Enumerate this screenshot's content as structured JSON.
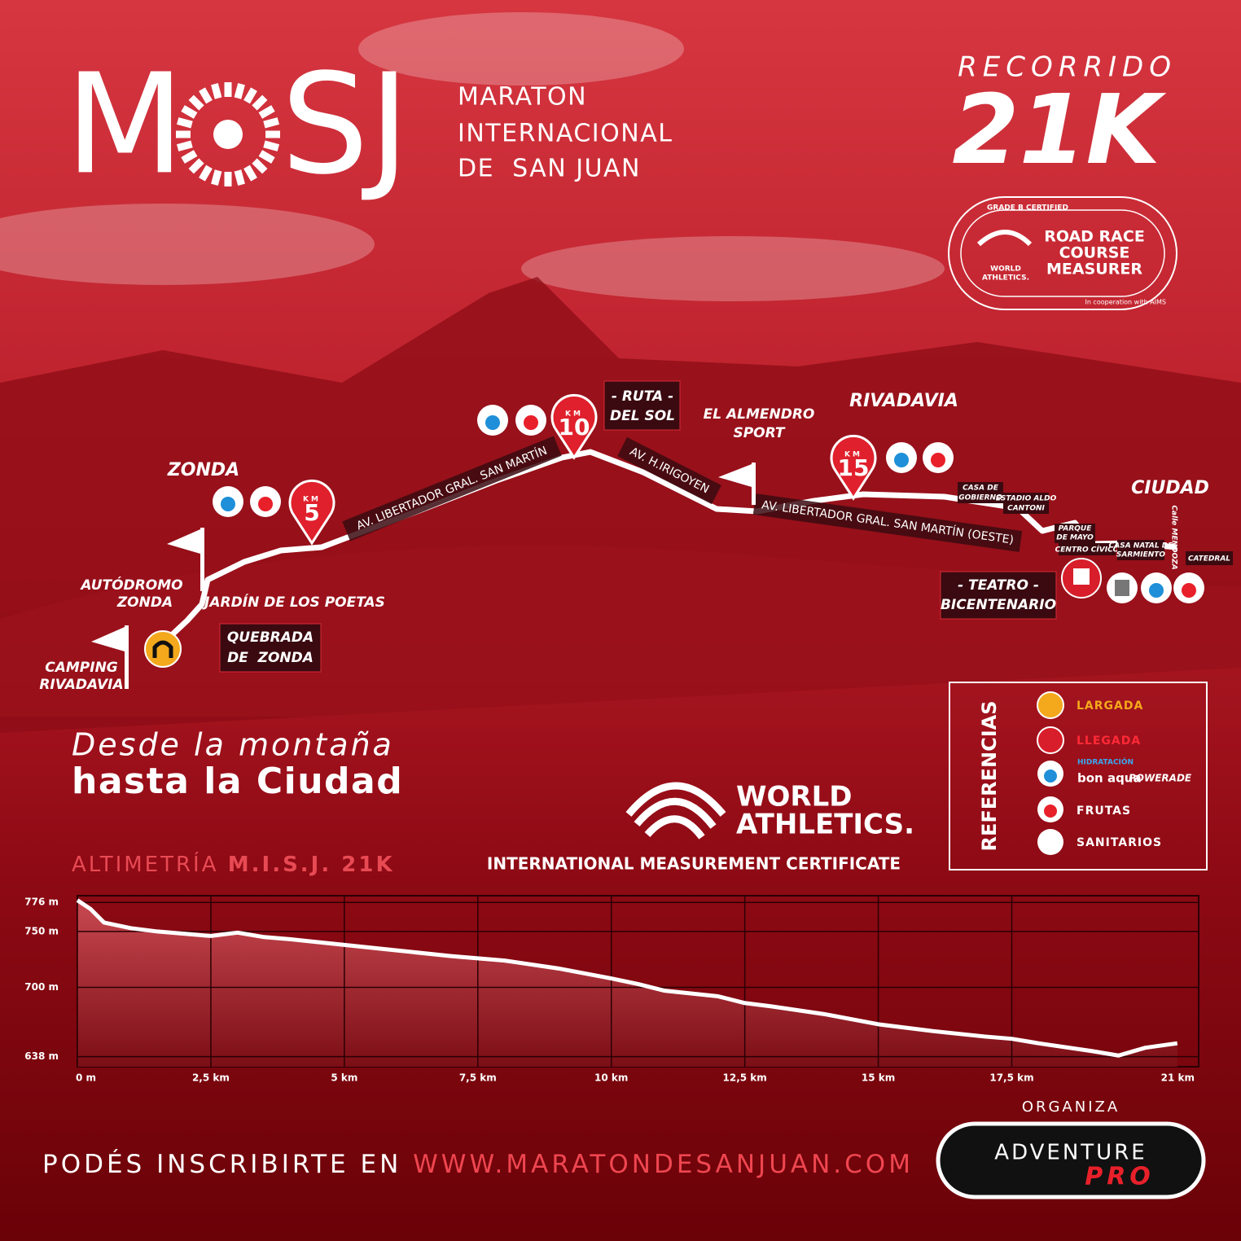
{
  "header": {
    "logo": [
      "M",
      "SJ"
    ],
    "event_name": [
      "MARATON",
      "INTERNACIONAL",
      "DE  SAN JUAN"
    ],
    "route_label": "RECORRIDO",
    "distance": "21K"
  },
  "badge": {
    "arc_top": "GRADE B CERTIFIED",
    "lines": [
      "ROAD RACE",
      "COURSE",
      "MEASURER"
    ],
    "org": [
      "WORLD",
      "ATHLETICS."
    ],
    "footer": "In cooperation with AIMS"
  },
  "map": {
    "places": [
      [
        "ZONDA"
      ],
      [
        "AUTÓDROMO",
        "ZONDA"
      ],
      [
        "CAMPING",
        "RIVADAVIA"
      ],
      [
        "JARDÍN DE LOS POETAS"
      ],
      [
        "QUEBRADA",
        "DE  ZONDA"
      ],
      [
        "- RUTA -",
        "DEL SOL"
      ],
      [
        "EL ALMENDRO",
        "SPORT"
      ],
      [
        "RIVADAVIA"
      ],
      [
        "CASA DE",
        "GOBIERNO"
      ],
      [
        "ESTADIO ALDO",
        "CANTONI"
      ],
      [
        "PARQUE",
        "DE MAYO"
      ],
      [
        "CENTRO CÍVICO"
      ],
      [
        "CASA NATAL DE",
        "SARMIENTO"
      ],
      [
        "Calle MENDOZA"
      ],
      [
        "CATEDRAL"
      ],
      [
        "CIUDAD"
      ],
      [
        "- TEATRO -",
        "BICENTENARIO"
      ]
    ],
    "streets": [
      "AV. LIBERTADOR GRAL. SAN MARTÍN",
      "AV. H.IRIGOYEN",
      "AV. LIBERTADOR GRAL. SAN MARTÍN (OESTE)"
    ],
    "km_label": "KM",
    "km_markers": [
      "5",
      "10",
      "15"
    ]
  },
  "tagline": [
    "Desde la montaña",
    "hasta la Ciudad"
  ],
  "world_athletics": {
    "name": [
      "WORLD",
      "ATHLETICS."
    ],
    "certificate": "INTERNATIONAL MEASUREMENT CERTIFICATE"
  },
  "legend": {
    "title": "REFERENCIAS",
    "items": [
      "LARGADA",
      "LLEGADA",
      "FRUTAS",
      "SANITARIOS"
    ],
    "hydration": "HIDRATACIÓN",
    "sponsors": [
      "bon aqua",
      "POWERADE"
    ]
  },
  "chart_data": {
    "type": "area",
    "title": "ALTIMETRÍA",
    "subtitle": "M.I.S.J. 21K",
    "color": "#ffffff",
    "x": [
      0,
      0.25,
      0.5,
      1,
      1.5,
      2,
      2.5,
      3,
      3.5,
      4,
      5,
      6,
      7,
      8,
      9,
      10,
      10.5,
      11,
      12,
      12.5,
      13,
      14,
      15,
      16,
      17,
      17.5,
      18,
      19,
      19.5,
      20,
      20.6
    ],
    "values": [
      778,
      770,
      758,
      753,
      750,
      748,
      746,
      749,
      745,
      743,
      738,
      733,
      728,
      724,
      717,
      708,
      703,
      697,
      692,
      686,
      683,
      676,
      667,
      661,
      656,
      654,
      650,
      643,
      639,
      646,
      650
    ],
    "xlim": [
      0,
      21
    ],
    "ylim": [
      629,
      782
    ],
    "xticks": [
      {
        "value": 0,
        "label": "0 m"
      },
      {
        "value": 2.5,
        "label": "2,5 km"
      },
      {
        "value": 5,
        "label": "5 km"
      },
      {
        "value": 7.5,
        "label": "7,5 km"
      },
      {
        "value": 10,
        "label": "10 km"
      },
      {
        "value": 12.5,
        "label": "12,5 km"
      },
      {
        "value": 15,
        "label": "15 km"
      },
      {
        "value": 17.5,
        "label": "17,5 km"
      },
      {
        "value": 21,
        "label": "21  km"
      }
    ],
    "yticks": [
      {
        "value": 638,
        "label": "638 m"
      },
      {
        "value": 700,
        "label": "700 m"
      },
      {
        "value": 750,
        "label": "750 m"
      },
      {
        "value": 776,
        "label": "776 m"
      }
    ],
    "grid": true
  },
  "footer": {
    "organiza": "ORGANIZA",
    "cta": "PODÉS INSCRIBIRTE EN",
    "url": "WWW.MARATONDESANJUAN.COM",
    "organizer": [
      "ADVENTURE",
      "PRO"
    ]
  }
}
